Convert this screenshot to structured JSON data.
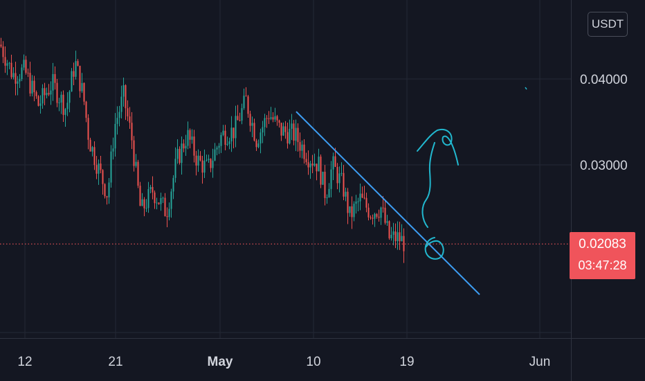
{
  "chart_data": {
    "type": "candlestick",
    "currency": "USDT",
    "y_ticks": [
      "0.04000",
      "0.03000"
    ],
    "x_ticks": [
      {
        "label": "12",
        "bold": false
      },
      {
        "label": "21",
        "bold": false
      },
      {
        "label": "May",
        "bold": true
      },
      {
        "label": "10",
        "bold": false
      },
      {
        "label": "19",
        "bold": false
      },
      {
        "label": "Jun",
        "bold": false
      }
    ],
    "current_price": "0.02083",
    "countdown": "03:47:28",
    "ylim": [
      0.0145,
      0.0505
    ],
    "trendline": {
      "from": 0.0362,
      "to": 0.0149
    },
    "keypoints": [
      [
        0,
        0.044
      ],
      [
        18,
        0.0405
      ],
      [
        35,
        0.041
      ],
      [
        55,
        0.037
      ],
      [
        75,
        0.0395
      ],
      [
        95,
        0.0365
      ],
      [
        108,
        0.042
      ],
      [
        120,
        0.038
      ],
      [
        128,
        0.033
      ],
      [
        140,
        0.03
      ],
      [
        155,
        0.0265
      ],
      [
        165,
        0.0345
      ],
      [
        178,
        0.038
      ],
      [
        190,
        0.033
      ],
      [
        203,
        0.0245
      ],
      [
        220,
        0.027
      ],
      [
        240,
        0.0245
      ],
      [
        255,
        0.0305
      ],
      [
        270,
        0.0335
      ],
      [
        285,
        0.0305
      ],
      [
        300,
        0.0295
      ],
      [
        320,
        0.0335
      ],
      [
        338,
        0.034
      ],
      [
        355,
        0.0375
      ],
      [
        370,
        0.033
      ],
      [
        388,
        0.036
      ],
      [
        405,
        0.034
      ],
      [
        425,
        0.0335
      ],
      [
        445,
        0.031
      ],
      [
        460,
        0.03
      ],
      [
        470,
        0.0265
      ],
      [
        480,
        0.03
      ],
      [
        495,
        0.0275
      ],
      [
        505,
        0.024
      ],
      [
        520,
        0.026
      ],
      [
        535,
        0.0245
      ],
      [
        550,
        0.025
      ],
      [
        562,
        0.0215
      ],
      [
        575,
        0.0215
      ],
      [
        583,
        0.021
      ]
    ],
    "colors": {
      "up": "#26a69a",
      "down": "#ef5350",
      "trendline": "#3d9df2",
      "drawing": "#22b8cf",
      "grid": "#242835",
      "price_line": "#f0545b"
    }
  }
}
